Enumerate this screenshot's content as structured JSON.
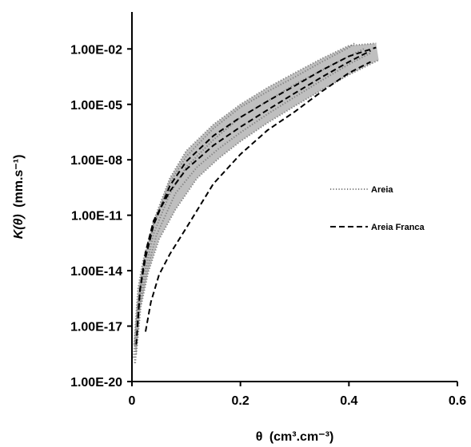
{
  "chart_data": {
    "type": "line",
    "x_axis": {
      "label_symbol": "θ",
      "label_unit": "(cm³.cm⁻³)",
      "range": [
        0,
        0.6
      ],
      "ticks": [
        0,
        0.2,
        0.4,
        0.6
      ],
      "tick_labels": [
        "0",
        "0.2",
        "0.4",
        "0.6"
      ]
    },
    "y_axis": {
      "label_symbol": "K(θ)",
      "label_unit": "(mm.s⁻¹)",
      "scale": "log",
      "range": [
        1e-20,
        1
      ],
      "ticks": [
        1e-20,
        1e-17,
        1e-14,
        1e-11,
        1e-08,
        1e-05,
        0.01
      ],
      "tick_labels": [
        "1.00E-20",
        "1.00E-17",
        "1.00E-14",
        "1.00E-11",
        "1.00E-08",
        "1.00E-05",
        "1.00E-02"
      ]
    },
    "grid": false,
    "legend_position": "right-middle",
    "series": [
      {
        "name": "Areia",
        "style": "dotted",
        "color": "#7f7f7f",
        "curves": [
          {
            "x": [
              0.003,
              0.01,
              0.02,
              0.04,
              0.07,
              0.1,
              0.15,
              0.2,
              0.25,
              0.3,
              0.35,
              0.4,
              0.41
            ],
            "y": [
              2e-19,
              1e-16,
              1e-14,
              3e-12,
              6e-10,
              1.5e-08,
              5e-07,
              7e-06,
              5e-05,
              0.0003,
              0.002,
              0.012,
              0.02
            ]
          },
          {
            "x": [
              0.005,
              0.012,
              0.022,
              0.04,
              0.07,
              0.1,
              0.15,
              0.2,
              0.25,
              0.3,
              0.35,
              0.4,
              0.43
            ],
            "y": [
              1e-19,
              1e-16,
              5e-15,
              1e-12,
              1.5e-10,
              4e-09,
              1.2e-07,
              2e-06,
              1.5e-05,
              0.00012,
              0.0007,
              0.004,
              0.011
            ]
          },
          {
            "x": [
              0.006,
              0.014,
              0.025,
              0.045,
              0.08,
              0.12,
              0.16,
              0.2,
              0.25,
              0.3,
              0.35,
              0.4,
              0.44
            ],
            "y": [
              1e-19,
              1e-16,
              5e-15,
              8e-13,
              1.5e-10,
              4e-09,
              4e-08,
              3e-07,
              3e-06,
              2.5e-05,
              0.0002,
              0.0015,
              0.006
            ]
          },
          {
            "x": [
              0.008,
              0.016,
              0.03,
              0.05,
              0.08,
              0.12,
              0.16,
              0.2,
              0.25,
              0.3,
              0.35,
              0.4,
              0.455
            ],
            "y": [
              3e-19,
              1e-16,
              8e-15,
              5e-13,
              2e-11,
              1e-09,
              1.2e-08,
              1e-07,
              1e-06,
              8e-06,
              6e-05,
              0.0004,
              0.0025
            ]
          },
          {
            "x": [
              0.004,
              0.011,
              0.02,
              0.04,
              0.07,
              0.1,
              0.15,
              0.2,
              0.25,
              0.3,
              0.35,
              0.4,
              0.45
            ],
            "y": [
              1e-18,
              1e-15,
              3e-14,
              5e-12,
              1e-09,
              3e-08,
              8e-07,
              1e-05,
              8e-05,
              0.0005,
              0.003,
              0.015,
              0.02
            ]
          }
        ]
      },
      {
        "name": "Areia Franca",
        "style": "dashed",
        "color": "#000000",
        "curves": [
          {
            "x": [
              0.01,
              0.015,
              0.025,
              0.04,
              0.07,
              0.1,
              0.15,
              0.2,
              0.25,
              0.3,
              0.35,
              0.4,
              0.44
            ],
            "y": [
              1e-17,
              1e-15,
              1e-13,
              5e-12,
              2e-10,
              3e-09,
              6e-08,
              6e-07,
              5e-06,
              4e-05,
              0.0003,
              0.002,
              0.008
            ]
          },
          {
            "x": [
              0.008,
              0.015,
              0.025,
              0.04,
              0.07,
              0.1,
              0.15,
              0.2,
              0.25,
              0.3,
              0.35,
              0.4,
              0.45
            ],
            "y": [
              1e-18,
              1e-15,
              5e-14,
              3e-12,
              4e-10,
              8e-09,
              2e-07,
              2e-06,
              1.5e-05,
              0.0001,
              0.0007,
              0.004,
              0.012
            ]
          },
          {
            "x": [
              0.025,
              0.035,
              0.05,
              0.07,
              0.1,
              0.15,
              0.2,
              0.25,
              0.3,
              0.35,
              0.4,
              0.44
            ],
            "y": [
              5e-18,
              2e-16,
              6e-15,
              8e-14,
              2e-12,
              5e-10,
              2e-08,
              4e-07,
              4e-06,
              5e-05,
              0.0005,
              0.002
            ]
          }
        ]
      }
    ]
  }
}
